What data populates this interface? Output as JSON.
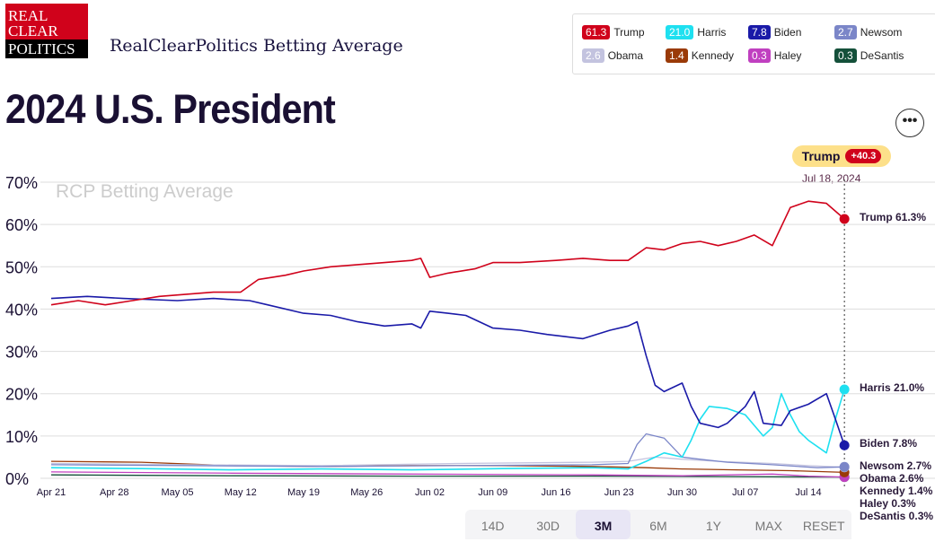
{
  "header": {
    "logo_lines": [
      "REAL",
      "CLEAR",
      "POLITICS"
    ],
    "brand": "RealClearPolitics Betting Average",
    "title": "2024 U.S. President",
    "more": "•••"
  },
  "legend": [
    {
      "name": "Trump",
      "value": "61.3",
      "color": "#d0021b"
    },
    {
      "name": "Harris",
      "value": "21.0",
      "color": "#1ee0f0"
    },
    {
      "name": "Biden",
      "value": "7.8",
      "color": "#1a1aa8"
    },
    {
      "name": "Newsom",
      "value": "2.7",
      "color": "#7b86c8"
    },
    {
      "name": "Obama",
      "value": "2.6",
      "color": "#c3c3df"
    },
    {
      "name": "Kennedy",
      "value": "1.4",
      "color": "#9a3a08"
    },
    {
      "name": "Haley",
      "value": "0.3",
      "color": "#c040c0"
    },
    {
      "name": "DeSantis",
      "value": "0.3",
      "color": "#14503a"
    }
  ],
  "tooltip": {
    "name": "Trump",
    "spread": "+40.3",
    "date": "Jul 18, 2024"
  },
  "ranges": [
    "14D",
    "30D",
    "3M",
    "6M",
    "1Y",
    "MAX",
    "RESET"
  ],
  "active_range": "3M",
  "chart_data": {
    "type": "line",
    "watermark": "RCP Betting Average",
    "ylim": [
      0,
      70
    ],
    "yticks": [
      "0%",
      "10%",
      "20%",
      "30%",
      "40%",
      "50%",
      "60%",
      "70%"
    ],
    "xticks": [
      {
        "day": 0,
        "label": "Apr 21"
      },
      {
        "day": 7,
        "label": "Apr 28"
      },
      {
        "day": 14,
        "label": "May 05"
      },
      {
        "day": 21,
        "label": "May 12"
      },
      {
        "day": 28,
        "label": "May 19"
      },
      {
        "day": 35,
        "label": "May 26"
      },
      {
        "day": 42,
        "label": "Jun 02"
      },
      {
        "day": 49,
        "label": "Jun 09"
      },
      {
        "day": 56,
        "label": "Jun 16"
      },
      {
        "day": 63,
        "label": "Jun 23"
      },
      {
        "day": 70,
        "label": "Jun 30"
      },
      {
        "day": 77,
        "label": "Jul 07"
      },
      {
        "day": 84,
        "label": "Jul 14"
      }
    ],
    "x_unit": "days since Apr 21, 2024",
    "xlim": [
      0,
      88
    ],
    "series": [
      {
        "name": "Trump",
        "label": "Trump 61.3%",
        "points": [
          [
            0,
            41
          ],
          [
            3,
            42
          ],
          [
            6,
            41
          ],
          [
            9,
            42
          ],
          [
            12,
            43
          ],
          [
            15,
            43.5
          ],
          [
            18,
            44
          ],
          [
            21,
            44
          ],
          [
            23,
            47
          ],
          [
            26,
            48
          ],
          [
            28,
            49
          ],
          [
            31,
            50
          ],
          [
            34,
            50.5
          ],
          [
            37,
            51
          ],
          [
            40,
            51.5
          ],
          [
            41,
            52
          ],
          [
            42,
            47.5
          ],
          [
            44,
            48.5
          ],
          [
            47,
            49.5
          ],
          [
            49,
            51
          ],
          [
            52,
            51
          ],
          [
            56,
            51.5
          ],
          [
            59,
            52
          ],
          [
            62,
            51.5
          ],
          [
            64,
            51.5
          ],
          [
            66,
            54.5
          ],
          [
            68,
            54
          ],
          [
            70,
            55.5
          ],
          [
            72,
            56
          ],
          [
            74,
            55
          ],
          [
            76,
            56
          ],
          [
            78,
            57.5
          ],
          [
            80,
            55
          ],
          [
            82,
            64
          ],
          [
            84,
            65.5
          ],
          [
            86,
            65
          ],
          [
            88,
            61.3
          ]
        ]
      },
      {
        "name": "Harris",
        "label": "Harris 21.0%",
        "points": [
          [
            0,
            2.5
          ],
          [
            10,
            2.3
          ],
          [
            20,
            2
          ],
          [
            30,
            2.2
          ],
          [
            40,
            2
          ],
          [
            50,
            2.3
          ],
          [
            60,
            2.5
          ],
          [
            64,
            2.2
          ],
          [
            66,
            4
          ],
          [
            68,
            6
          ],
          [
            70,
            5
          ],
          [
            71,
            9
          ],
          [
            72,
            14
          ],
          [
            73,
            17
          ],
          [
            75,
            16.5
          ],
          [
            77,
            15
          ],
          [
            79,
            10
          ],
          [
            80,
            12
          ],
          [
            81,
            20
          ],
          [
            82,
            15
          ],
          [
            83,
            11
          ],
          [
            84,
            9
          ],
          [
            86,
            6
          ],
          [
            87,
            14
          ],
          [
            88,
            21
          ]
        ]
      },
      {
        "name": "Biden",
        "label": "Biden 7.8%",
        "points": [
          [
            0,
            42.5
          ],
          [
            4,
            43
          ],
          [
            8,
            42.5
          ],
          [
            14,
            42
          ],
          [
            18,
            42.5
          ],
          [
            22,
            42
          ],
          [
            24,
            41
          ],
          [
            28,
            39
          ],
          [
            31,
            38.5
          ],
          [
            34,
            37
          ],
          [
            37,
            36
          ],
          [
            40,
            36.5
          ],
          [
            41,
            35.5
          ],
          [
            42,
            39.5
          ],
          [
            44,
            39
          ],
          [
            46,
            38.5
          ],
          [
            49,
            35.5
          ],
          [
            52,
            35
          ],
          [
            55,
            34
          ],
          [
            57,
            33.5
          ],
          [
            59,
            33
          ],
          [
            62,
            35
          ],
          [
            64,
            36
          ],
          [
            65,
            37
          ],
          [
            66,
            29
          ],
          [
            67,
            22
          ],
          [
            68,
            20.5
          ],
          [
            70,
            22.5
          ],
          [
            71,
            17
          ],
          [
            72,
            13
          ],
          [
            74,
            12
          ],
          [
            75,
            13
          ],
          [
            77,
            17
          ],
          [
            78,
            20.5
          ],
          [
            79,
            13
          ],
          [
            81,
            12.5
          ],
          [
            82,
            16
          ],
          [
            84,
            17.5
          ],
          [
            86,
            20
          ],
          [
            87,
            14
          ],
          [
            88,
            7.8
          ]
        ]
      },
      {
        "name": "Newsom",
        "label": "Newsom 2.7%",
        "points": [
          [
            0,
            3.2
          ],
          [
            15,
            3
          ],
          [
            30,
            2.8
          ],
          [
            45,
            3
          ],
          [
            60,
            3.2
          ],
          [
            64,
            3.5
          ],
          [
            65,
            8
          ],
          [
            66,
            10.5
          ],
          [
            68,
            9.5
          ],
          [
            70,
            5
          ],
          [
            72,
            4.5
          ],
          [
            75,
            3.8
          ],
          [
            80,
            3.2
          ],
          [
            85,
            2.5
          ],
          [
            88,
            2.7
          ]
        ]
      },
      {
        "name": "Obama",
        "label": "Obama 2.6%",
        "points": [
          [
            0,
            3.5
          ],
          [
            15,
            3.2
          ],
          [
            30,
            3
          ],
          [
            45,
            3.5
          ],
          [
            60,
            3.8
          ],
          [
            64,
            4
          ],
          [
            67,
            5
          ],
          [
            70,
            4.5
          ],
          [
            74,
            4
          ],
          [
            80,
            3.5
          ],
          [
            84,
            3
          ],
          [
            88,
            2.6
          ]
        ]
      },
      {
        "name": "Kennedy",
        "label": "Kennedy 1.4%",
        "points": [
          [
            0,
            4
          ],
          [
            10,
            3.8
          ],
          [
            20,
            3
          ],
          [
            30,
            2.8
          ],
          [
            40,
            3
          ],
          [
            50,
            3
          ],
          [
            60,
            2.8
          ],
          [
            66,
            2.5
          ],
          [
            70,
            2.2
          ],
          [
            76,
            2
          ],
          [
            82,
            1.8
          ],
          [
            88,
            1.4
          ]
        ]
      },
      {
        "name": "Haley",
        "label": "Haley 0.3%",
        "points": [
          [
            0,
            1.5
          ],
          [
            20,
            1.2
          ],
          [
            40,
            1
          ],
          [
            60,
            0.8
          ],
          [
            70,
            0.6
          ],
          [
            80,
            1
          ],
          [
            84,
            0.5
          ],
          [
            88,
            0.3
          ]
        ]
      },
      {
        "name": "DeSantis",
        "label": "DeSantis 0.3%",
        "points": [
          [
            0,
            0.8
          ],
          [
            20,
            0.6
          ],
          [
            40,
            0.5
          ],
          [
            60,
            0.5
          ],
          [
            88,
            0.3
          ]
        ]
      }
    ]
  }
}
